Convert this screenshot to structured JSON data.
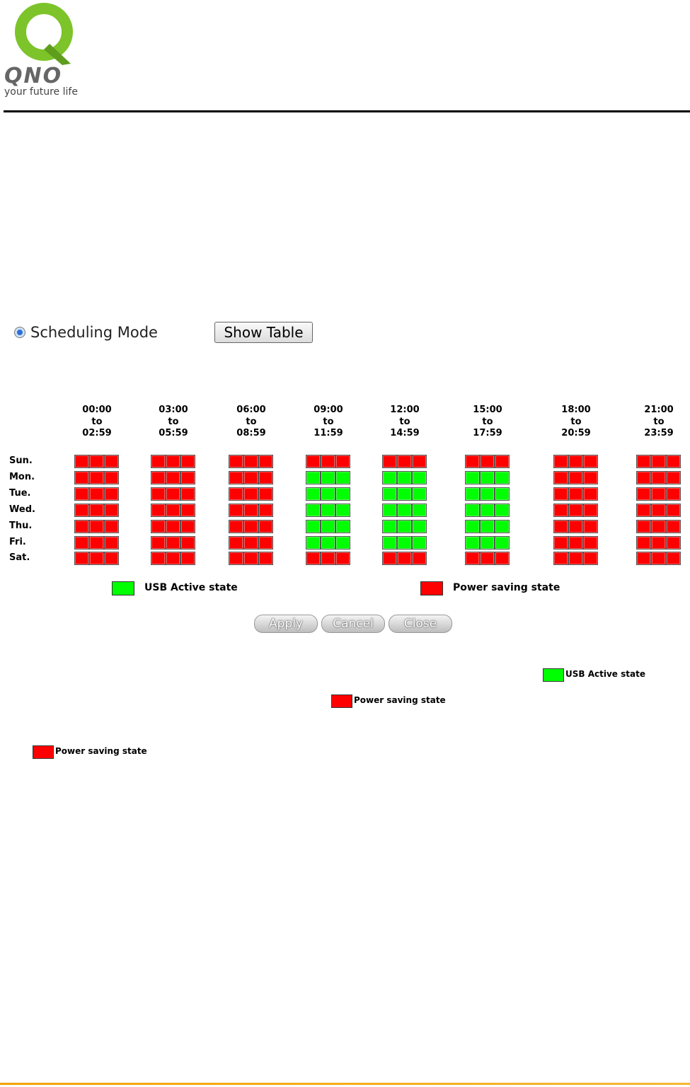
{
  "header": {
    "logo_text": "QNO",
    "tagline": "your future life"
  },
  "mode": {
    "label": "Scheduling Mode",
    "button": "Show Table"
  },
  "schedule": {
    "columns": [
      {
        "from": "00:00",
        "to": "to",
        "until": "02:59"
      },
      {
        "from": "03:00",
        "to": "to",
        "until": "05:59"
      },
      {
        "from": "06:00",
        "to": "to",
        "until": "08:59"
      },
      {
        "from": "09:00",
        "to": "to",
        "until": "11:59"
      },
      {
        "from": "12:00",
        "to": "to",
        "until": "14:59"
      },
      {
        "from": "15:00",
        "to": "to",
        "until": "17:59"
      },
      {
        "from": "18:00",
        "to": "to",
        "until": "20:59"
      },
      {
        "from": "21:00",
        "to": "to",
        "until": "23:59"
      }
    ],
    "days": [
      "Sun.",
      "Mon.",
      "Tue.",
      "Wed.",
      "Thu.",
      "Fri.",
      "Sat."
    ],
    "legend": [
      {
        "label": "USB Active state",
        "color": "#00ff00"
      },
      {
        "label": "Power saving state",
        "color": "#ff0000"
      }
    ],
    "cells": [
      [
        1,
        1,
        1,
        1,
        1,
        1,
        1,
        1,
        1,
        1,
        1,
        1,
        1,
        1,
        1,
        1,
        1,
        1,
        1,
        1,
        1,
        1,
        1,
        1
      ],
      [
        1,
        1,
        1,
        1,
        1,
        1,
        1,
        1,
        1,
        0,
        0,
        0,
        0,
        0,
        0,
        0,
        0,
        0,
        1,
        1,
        1,
        1,
        1,
        1
      ],
      [
        1,
        1,
        1,
        1,
        1,
        1,
        1,
        1,
        1,
        0,
        0,
        0,
        0,
        0,
        0,
        0,
        0,
        0,
        1,
        1,
        1,
        1,
        1,
        1
      ],
      [
        1,
        1,
        1,
        1,
        1,
        1,
        1,
        1,
        1,
        0,
        0,
        0,
        0,
        0,
        0,
        0,
        0,
        0,
        1,
        1,
        1,
        1,
        1,
        1
      ],
      [
        1,
        1,
        1,
        1,
        1,
        1,
        1,
        1,
        1,
        0,
        0,
        0,
        0,
        0,
        0,
        0,
        0,
        0,
        1,
        1,
        1,
        1,
        1,
        1
      ],
      [
        1,
        1,
        1,
        1,
        1,
        1,
        1,
        1,
        1,
        0,
        0,
        0,
        0,
        0,
        0,
        0,
        0,
        0,
        1,
        1,
        1,
        1,
        1,
        1
      ],
      [
        1,
        1,
        1,
        1,
        1,
        1,
        1,
        1,
        1,
        1,
        1,
        1,
        1,
        1,
        1,
        1,
        1,
        1,
        1,
        1,
        1,
        1,
        1,
        1
      ]
    ]
  },
  "buttons": [
    "Apply",
    "Cancel",
    "Close"
  ],
  "notes": [
    {
      "label": "USB Active state",
      "color": "#00ff00"
    },
    {
      "label": "Power saving state",
      "color": "#ff0000"
    },
    {
      "label": "Power saving state",
      "color": "#ff0000"
    }
  ]
}
